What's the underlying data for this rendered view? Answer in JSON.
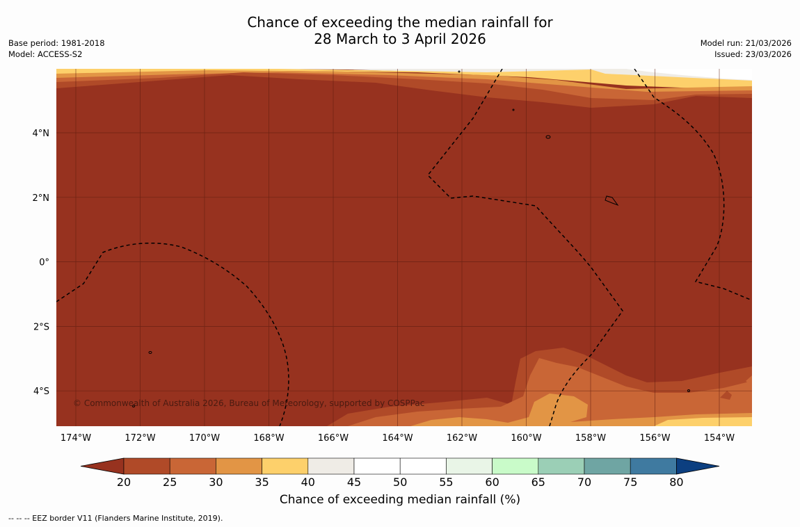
{
  "title": {
    "line1": "Chance of exceeding the median rainfall for",
    "line2": "28 March to 3 April 2026"
  },
  "meta_left": {
    "base_period": "Base period: 1981-2018",
    "model": "Model: ACCESS-S2"
  },
  "meta_right": {
    "model_run": "Model run: 21/03/2026",
    "issued": "Issued: 23/03/2026"
  },
  "map": {
    "lon_labels": [
      "174°W",
      "172°W",
      "170°W",
      "168°W",
      "166°W",
      "164°W",
      "162°W",
      "160°W",
      "158°W",
      "156°W",
      "154°W"
    ],
    "lat_labels": [
      "4°N",
      "2°N",
      "0°",
      "2°S",
      "4°S"
    ],
    "copyright": "© Commonwealth of Australia 2026, Bureau of Meteorology, supported by COSPPac",
    "region_fill": "#97321f"
  },
  "colorbar": {
    "ticks": [
      "20",
      "25",
      "30",
      "35",
      "40",
      "45",
      "50",
      "55",
      "60",
      "65",
      "70",
      "75",
      "80"
    ],
    "colors": [
      "#97321f",
      "#b04a28",
      "#c96636",
      "#e29545",
      "#fdd06b",
      "#efece6",
      "#ffffff",
      "#ffffff",
      "#e9f5e7",
      "#c9fbc9",
      "#9bcfb6",
      "#6fa5a3",
      "#3f7aa0",
      "#0c3f80"
    ],
    "title": "Chance of exceeding median rainfall (%)"
  },
  "footer": "--  --  -- EEZ border V11 (Flanders Marine Institute, 2019)."
}
